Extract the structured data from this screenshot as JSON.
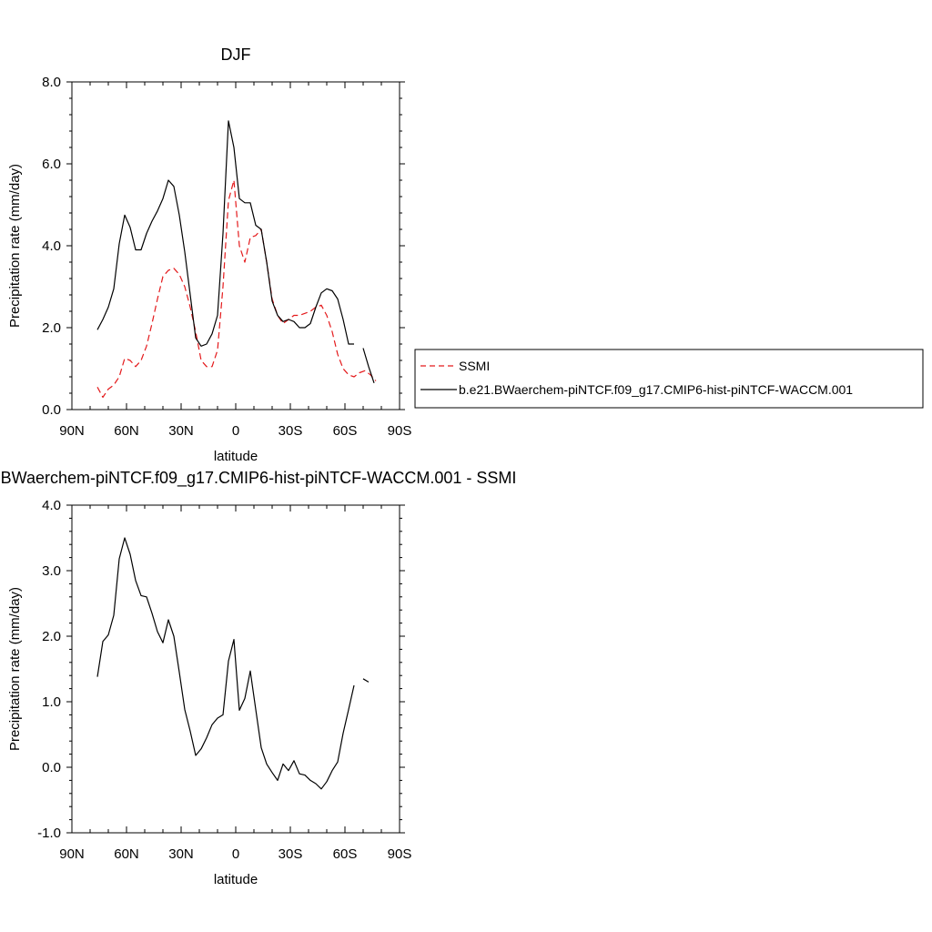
{
  "chart_data": [
    {
      "type": "line",
      "title": "DJF",
      "xlabel": "latitude",
      "ylabel": "Precipitation rate (mm/day)",
      "xlim": [
        90,
        -90
      ],
      "ylim": [
        0,
        8
      ],
      "x_ticks": [
        90,
        60,
        30,
        0,
        -30,
        -60,
        -90
      ],
      "x_tick_labels": [
        "90N",
        "60N",
        "30N",
        "0",
        "30S",
        "60S",
        "90S"
      ],
      "y_ticks": [
        0,
        2,
        4,
        6,
        8
      ],
      "y_tick_labels": [
        "0.0",
        "2.0",
        "4.0",
        "6.0",
        "8.0"
      ],
      "legend": {
        "placement": "right",
        "entries": [
          "SSMI",
          "b.e21.BWaerchem-piNTCF.f09_g17.CMIP6-hist-piNTCF-WACCM.001"
        ]
      },
      "series": [
        {
          "name": "SSMI",
          "style": "dashed",
          "color": "#e41a1c",
          "x": [
            76,
            73,
            70,
            67,
            64,
            61,
            58,
            55,
            52,
            49,
            46,
            43,
            40,
            37,
            34,
            31,
            28,
            25,
            22,
            19,
            16,
            13,
            10,
            7,
            4,
            1,
            -2,
            -5,
            -8,
            -11,
            -14,
            -17,
            -20,
            -23,
            -26,
            -29,
            -32,
            -35,
            -38,
            -41,
            -44,
            -47,
            -50,
            -53,
            -56,
            -59,
            -62,
            -65,
            -68,
            -71,
            -74,
            -77
          ],
          "y": [
            0.55,
            0.3,
            0.5,
            0.6,
            0.8,
            1.25,
            1.2,
            1.05,
            1.2,
            1.55,
            2.1,
            2.7,
            3.25,
            3.4,
            3.45,
            3.3,
            3.0,
            2.5,
            1.9,
            1.2,
            1.05,
            1.05,
            1.45,
            3.0,
            5.1,
            5.6,
            4.0,
            3.6,
            4.2,
            4.25,
            4.4,
            3.6,
            2.7,
            2.3,
            2.1,
            2.2,
            2.3,
            2.3,
            2.35,
            2.4,
            2.5,
            2.55,
            2.3,
            1.9,
            1.35,
            1.0,
            0.85,
            0.8,
            0.9,
            0.95,
            0.85,
            0.7
          ]
        },
        {
          "name": "b.e21.BWaerchem-piNTCF.f09_g17.CMIP6-hist-piNTCF-WACCM.001",
          "style": "solid",
          "color": "#000000",
          "x": [
            76,
            73,
            70,
            67,
            64,
            61,
            58,
            55,
            52,
            49,
            46,
            43,
            40,
            37,
            34,
            31,
            28,
            25,
            22,
            19,
            16,
            13,
            10,
            7,
            4,
            1,
            -2,
            -5,
            -8,
            -11,
            -14,
            -17,
            -20,
            -23,
            -26,
            -29,
            -32,
            -35,
            -38,
            -41,
            -44,
            -47,
            -50,
            -53,
            -56,
            -59,
            -62,
            -65,
            null,
            -70,
            -73,
            -76
          ],
          "y": [
            1.95,
            2.2,
            2.5,
            2.95,
            4.05,
            4.75,
            4.45,
            3.9,
            3.9,
            4.3,
            4.6,
            4.85,
            5.15,
            5.6,
            5.45,
            4.75,
            3.85,
            2.8,
            1.75,
            1.55,
            1.6,
            1.85,
            2.3,
            4.3,
            7.05,
            6.4,
            5.15,
            5.05,
            5.05,
            4.5,
            4.4,
            3.6,
            2.65,
            2.3,
            2.15,
            2.2,
            2.15,
            2.0,
            2.0,
            2.1,
            2.5,
            2.85,
            2.95,
            2.9,
            2.7,
            2.2,
            1.6,
            1.6,
            null,
            1.5,
            1.05,
            0.65
          ]
        }
      ]
    },
    {
      "type": "line",
      "title": "b.e21.BWaerchem-piNTCF.f09_g17.CMIP6-hist-piNTCF-WACCM.001 - SSMI",
      "xlabel": "latitude",
      "ylabel": "Precipitation rate (mm/day)",
      "xlim": [
        90,
        -90
      ],
      "ylim": [
        -1,
        4
      ],
      "x_ticks": [
        90,
        60,
        30,
        0,
        -30,
        -60,
        -90
      ],
      "x_tick_labels": [
        "90N",
        "60N",
        "30N",
        "0",
        "30S",
        "60S",
        "90S"
      ],
      "y_ticks": [
        -1,
        0,
        1,
        2,
        3,
        4
      ],
      "y_tick_labels": [
        "-1.0",
        "0.0",
        "1.0",
        "2.0",
        "3.0",
        "4.0"
      ],
      "series": [
        {
          "style": "solid",
          "color": "#000000",
          "x": [
            76,
            73,
            70,
            67,
            64,
            61,
            58,
            55,
            52,
            49,
            46,
            43,
            40,
            37,
            34,
            31,
            28,
            25,
            22,
            19,
            16,
            13,
            10,
            7,
            4,
            1,
            -2,
            -5,
            -8,
            -11,
            -14,
            -17,
            -20,
            -23,
            -26,
            -29,
            -32,
            -35,
            -38,
            -41,
            -44,
            -47,
            -50,
            -53,
            -56,
            -59,
            -62,
            -65,
            null,
            -70,
            -73
          ],
          "y": [
            1.38,
            1.92,
            2.02,
            2.32,
            3.18,
            3.5,
            3.25,
            2.85,
            2.62,
            2.6,
            2.35,
            2.07,
            1.9,
            2.25,
            2.0,
            1.45,
            0.88,
            0.55,
            0.18,
            0.28,
            0.45,
            0.65,
            0.75,
            0.8,
            1.62,
            1.95,
            0.87,
            1.05,
            1.47,
            0.88,
            0.3,
            0.05,
            -0.08,
            -0.2,
            0.05,
            -0.05,
            0.1,
            -0.1,
            -0.12,
            -0.2,
            -0.25,
            -0.33,
            -0.22,
            -0.05,
            0.08,
            0.52,
            0.88,
            1.25,
            null,
            1.35,
            1.3
          ]
        }
      ]
    }
  ]
}
